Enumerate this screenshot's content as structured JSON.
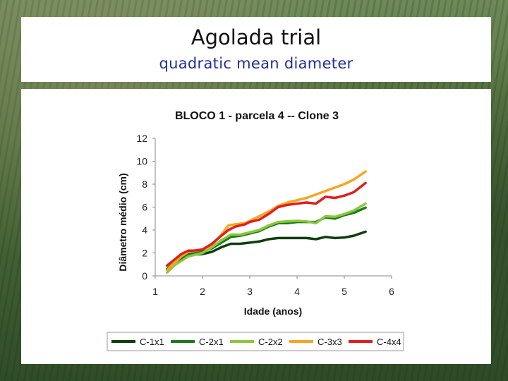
{
  "slide": {
    "title": "Agolada trial",
    "subtitle": "quadratic mean diameter"
  },
  "chart_data": {
    "type": "line",
    "title": "BLOCO 1 -  parcela 4 -- Clone 3",
    "xlabel": "Idade (anos)",
    "ylabel": "Diâmetro médio (cm)",
    "xlim": [
      1,
      6
    ],
    "ylim": [
      0,
      12
    ],
    "xticks": [
      "1",
      "2",
      "3",
      "4",
      "5",
      "6"
    ],
    "yticks": [
      "0",
      "2",
      "4",
      "6",
      "8",
      "10",
      "12"
    ],
    "grid": false,
    "legend": "bottom",
    "series": [
      {
        "name": "C-1x1",
        "color": "#0f3d0f",
        "x": [
          1.25,
          1.4,
          1.55,
          1.7,
          1.8,
          2.0,
          2.2,
          2.4,
          2.6,
          2.8,
          3.0,
          3.2,
          3.4,
          3.6,
          3.8,
          4.0,
          4.2,
          4.4,
          4.6,
          4.8,
          5.0,
          5.2,
          5.45
        ],
        "y": [
          0.6,
          1.1,
          1.5,
          1.8,
          1.85,
          1.9,
          2.1,
          2.5,
          2.8,
          2.8,
          2.9,
          3.0,
          3.2,
          3.3,
          3.3,
          3.3,
          3.3,
          3.2,
          3.4,
          3.3,
          3.35,
          3.5,
          3.85
        ]
      },
      {
        "name": "C-2x1",
        "color": "#1c7a1c",
        "x": [
          1.25,
          1.4,
          1.55,
          1.7,
          1.8,
          2.0,
          2.2,
          2.4,
          2.6,
          2.8,
          3.0,
          3.2,
          3.4,
          3.6,
          3.8,
          4.0,
          4.2,
          4.4,
          4.6,
          4.8,
          5.0,
          5.2,
          5.45
        ],
        "y": [
          0.6,
          1.1,
          1.6,
          1.9,
          1.95,
          2.1,
          2.4,
          2.9,
          3.4,
          3.5,
          3.7,
          3.9,
          4.3,
          4.6,
          4.6,
          4.7,
          4.7,
          4.7,
          5.1,
          5.0,
          5.3,
          5.5,
          5.95
        ]
      },
      {
        "name": "C-2x2",
        "color": "#8cc63f",
        "x": [
          1.25,
          1.4,
          1.55,
          1.7,
          1.8,
          2.0,
          2.2,
          2.4,
          2.6,
          2.8,
          3.0,
          3.2,
          3.4,
          3.6,
          3.8,
          4.0,
          4.2,
          4.4,
          4.6,
          4.8,
          5.0,
          5.2,
          5.45
        ],
        "y": [
          0.3,
          0.9,
          1.3,
          1.7,
          1.8,
          2.0,
          2.5,
          3.1,
          3.6,
          3.6,
          3.8,
          4.0,
          4.4,
          4.7,
          4.75,
          4.8,
          4.75,
          4.6,
          5.2,
          5.15,
          5.4,
          5.7,
          6.3
        ]
      },
      {
        "name": "C-3x3",
        "color": "#f5a623",
        "x": [
          1.25,
          1.4,
          1.55,
          1.7,
          1.8,
          2.0,
          2.2,
          2.4,
          2.55,
          2.7,
          2.9,
          3.0,
          3.2,
          3.4,
          3.6,
          3.8,
          4.0,
          4.2,
          4.4,
          4.6,
          4.8,
          5.0,
          5.2,
          5.45
        ],
        "y": [
          0.5,
          1.1,
          1.7,
          2.1,
          2.2,
          2.3,
          2.7,
          3.6,
          4.4,
          4.5,
          4.6,
          4.8,
          5.2,
          5.6,
          6.1,
          6.4,
          6.6,
          6.8,
          7.1,
          7.4,
          7.7,
          8.0,
          8.4,
          9.1
        ]
      },
      {
        "name": "C-4x4",
        "color": "#e01e1e",
        "x": [
          1.25,
          1.4,
          1.55,
          1.7,
          1.8,
          2.0,
          2.2,
          2.4,
          2.55,
          2.7,
          2.9,
          3.0,
          3.2,
          3.4,
          3.6,
          3.8,
          4.0,
          4.2,
          4.4,
          4.6,
          4.8,
          5.0,
          5.2,
          5.45
        ],
        "y": [
          0.9,
          1.4,
          1.9,
          2.2,
          2.2,
          2.3,
          2.8,
          3.5,
          4.0,
          4.3,
          4.5,
          4.7,
          4.9,
          5.4,
          6.0,
          6.2,
          6.3,
          6.4,
          6.3,
          6.9,
          6.8,
          7.0,
          7.3,
          8.1
        ]
      }
    ]
  }
}
